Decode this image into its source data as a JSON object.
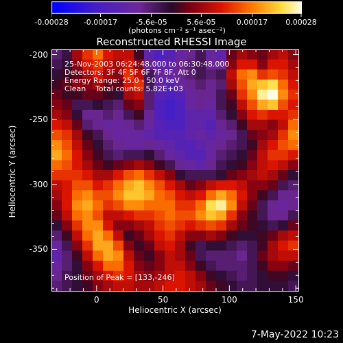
{
  "colorbar": {
    "tick_labels": [
      "-0.00028",
      "-0.00017",
      "-5.6e-05",
      "5.6e-05",
      "0.00017",
      "0.00028"
    ],
    "tick_values": [
      -0.00028,
      -0.00017,
      -5.6e-05,
      5.6e-05,
      0.00017,
      0.00028
    ],
    "range": [
      -0.00028,
      0.00028
    ],
    "units": "(photons cm⁻² s⁻¹ asec⁻²)"
  },
  "title": "Reconstructed RHESSI Image",
  "info": {
    "time": "25-Nov-2003 06:24:48.000 to 06:30:48.000",
    "detectors": "Detectors: 3F 4F 5F 6F 7F 8F, Att 0",
    "energy": "Energy Range: 25.0 - 50.0 keV",
    "clean": "Clean    Total counts: 5.82E+03",
    "peak": "Position of Peak = [133,-246]"
  },
  "axes": {
    "xlabel": "Heliocentric X (arcsec)",
    "ylabel": "Heliocentric Y (arcsec)",
    "xlim": [
      -34,
      152
    ],
    "ylim": [
      -382,
      -196
    ],
    "xticks": [
      "0",
      "50",
      "100",
      "150"
    ],
    "xtick_values": [
      0,
      50,
      100,
      150
    ],
    "yticks": [
      "-200",
      "-250",
      "-300",
      "-350"
    ],
    "ytick_values": [
      -200,
      -250,
      -300,
      -350
    ]
  },
  "timestamp": "7-May-2022 10:23",
  "chart_data": {
    "type": "heatmap",
    "title": "Reconstructed RHESSI Image",
    "xlabel": "Heliocentric X (arcsec)",
    "ylabel": "Heliocentric Y (arcsec)",
    "x_range": [
      -34,
      152
    ],
    "y_range": [
      -382,
      -196
    ],
    "value_range": [
      -0.00028,
      0.00028
    ],
    "peak_position": [
      133,
      -246
    ],
    "colormap": "blue-purple-red-yellow-white",
    "cols": 24,
    "rows": 24,
    "values": [
      [
        -6e-05,
        -3e-05,
        6e-05,
        0.00012,
        0.00016,
        0.0001,
        8e-05,
        8e-05,
        0.0,
        -0.00012,
        -0.00016,
        -0.00014,
        -0.0001,
        -8e-05,
        -4e-05,
        -0.0001,
        -0.00012,
        2e-05,
        6e-05,
        4e-05,
        2e-05,
        6e-05,
        8e-05,
        4e-05
      ],
      [
        -4e-05,
        -2e-05,
        4e-05,
        0.0001,
        0.00012,
        8e-05,
        6e-05,
        0.0001,
        4e-05,
        -8e-05,
        -0.00012,
        -0.00012,
        -8e-05,
        -6e-05,
        -4e-05,
        -8e-05,
        -8e-05,
        4e-05,
        0.0001,
        0.0001,
        4e-05,
        0.0001,
        0.0001,
        6e-05
      ],
      [
        -2e-05,
        0.0,
        2e-05,
        6e-05,
        0.0001,
        6e-05,
        4e-05,
        0.00012,
        8e-05,
        -4e-05,
        -0.0001,
        -0.0001,
        -8e-05,
        -6e-05,
        -4e-05,
        -6e-05,
        -4e-05,
        8e-05,
        0.00016,
        0.00018,
        0.00012,
        0.00014,
        0.00012,
        8e-05
      ],
      [
        0.0,
        2e-05,
        4e-05,
        4e-05,
        6e-05,
        2e-05,
        2e-05,
        0.0001,
        0.00012,
        -4e-05,
        -0.00012,
        -0.00014,
        -0.0001,
        -8e-05,
        -6e-05,
        -8e-05,
        -6e-05,
        6e-05,
        0.00014,
        0.0002,
        0.00022,
        0.00024,
        0.00016,
        0.0001
      ],
      [
        2e-05,
        0.0,
        0.0,
        2e-05,
        2e-05,
        0.0,
        -2e-05,
        6e-05,
        8e-05,
        -6e-05,
        -0.00014,
        -0.00016,
        -0.00014,
        -0.0001,
        -8e-05,
        -8e-05,
        -4e-05,
        2e-05,
        0.00012,
        0.00018,
        0.00026,
        0.00028,
        0.00018,
        0.00012
      ],
      [
        4e-05,
        2e-05,
        -4e-05,
        -4e-05,
        -2e-05,
        -4e-05,
        -6e-05,
        2e-05,
        4e-05,
        -6e-05,
        -0.00016,
        -0.00018,
        -0.00016,
        -0.0001,
        -8e-05,
        -0.0001,
        -4e-05,
        0.0,
        8e-05,
        0.00014,
        0.0002,
        0.00022,
        0.00014,
        0.0001
      ],
      [
        6e-05,
        4e-05,
        -2e-05,
        -8e-05,
        -8e-05,
        -6e-05,
        -8e-05,
        -4e-05,
        0.0,
        -8e-05,
        -0.00016,
        -0.00018,
        -0.00016,
        -0.00012,
        -0.00012,
        -0.00012,
        -6e-05,
        -2e-05,
        4e-05,
        0.0001,
        0.00012,
        0.0001,
        0.0001,
        0.00012
      ],
      [
        0.0001,
        8e-05,
        2e-05,
        -6e-05,
        -8e-05,
        -0.0001,
        -0.0001,
        -8e-05,
        -6e-05,
        -0.0001,
        -0.00014,
        -0.00016,
        -0.00016,
        -0.00012,
        -0.00012,
        -0.00014,
        -8e-05,
        -6e-05,
        0.0,
        6e-05,
        6e-05,
        4e-05,
        8e-05,
        0.00016
      ],
      [
        0.00014,
        0.00012,
        6e-05,
        0.0,
        -4e-05,
        -8e-05,
        -0.0001,
        -0.0001,
        -0.0001,
        -0.00012,
        -0.00014,
        -0.00014,
        -0.00014,
        -0.00012,
        -0.0001,
        -0.00012,
        -0.0001,
        -8e-05,
        -4e-05,
        2e-05,
        4e-05,
        6e-05,
        0.00012,
        0.00018
      ],
      [
        0.00018,
        0.00014,
        8e-05,
        2e-05,
        -2e-05,
        -6e-05,
        -8e-05,
        -0.0001,
        -0.0001,
        -8e-05,
        -0.0001,
        -0.00012,
        -0.00014,
        -0.00014,
        -0.00012,
        -0.0001,
        -8e-05,
        -6e-05,
        -4e-05,
        0.0,
        6e-05,
        0.0001,
        0.00014,
        0.00016
      ],
      [
        0.0002,
        0.00016,
        0.0001,
        4e-05,
        0.0,
        -4e-05,
        -6e-05,
        -4e-05,
        -4e-05,
        -2e-05,
        -6e-05,
        -0.0001,
        -0.00012,
        -0.00014,
        -0.00014,
        -0.0001,
        -6e-05,
        -4e-05,
        -2e-05,
        2e-05,
        8e-05,
        0.00012,
        0.00012,
        0.0001
      ],
      [
        0.00016,
        0.00014,
        0.0001,
        6e-05,
        2e-05,
        0.0,
        2e-05,
        4e-05,
        6e-05,
        4e-05,
        0.0,
        -4e-05,
        -8e-05,
        -0.0001,
        -0.00012,
        -8e-05,
        -4e-05,
        -2e-05,
        0.0,
        4e-05,
        8e-05,
        0.0001,
        8e-05,
        4e-05
      ],
      [
        0.00012,
        0.00012,
        0.00012,
        0.0001,
        6e-05,
        6e-05,
        0.0001,
        0.00014,
        0.00016,
        0.00012,
        8e-05,
        4e-05,
        -2e-05,
        -4e-05,
        -4e-05,
        -4e-05,
        -2e-05,
        2e-05,
        4e-05,
        6e-05,
        8e-05,
        6e-05,
        2e-05,
        -2e-05
      ],
      [
        8e-05,
        0.0001,
        0.00014,
        0.00014,
        0.0001,
        0.00012,
        0.00016,
        0.0002,
        0.00022,
        0.00018,
        0.00014,
        0.0001,
        6e-05,
        2e-05,
        4e-05,
        8e-05,
        0.0001,
        0.0001,
        8e-05,
        4e-05,
        4e-05,
        2e-05,
        -4e-05,
        -6e-05
      ],
      [
        6e-05,
        0.0001,
        0.00016,
        0.00018,
        0.00014,
        0.00014,
        0.00018,
        0.00022,
        0.00022,
        0.0002,
        0.00016,
        0.00014,
        0.0001,
        8e-05,
        0.0001,
        0.00016,
        0.0002,
        0.00016,
        0.0001,
        4e-05,
        0.0,
        -4e-05,
        -8e-05,
        -8e-05
      ],
      [
        4e-05,
        0.0001,
        0.00018,
        0.0002,
        0.00016,
        0.00012,
        0.00014,
        0.00018,
        0.00018,
        0.00016,
        0.00016,
        0.00016,
        0.00012,
        0.00012,
        0.00016,
        0.00024,
        0.00026,
        0.00018,
        8e-05,
        2e-05,
        -4e-05,
        -8e-05,
        -0.0001,
        -8e-05
      ],
      [
        2e-05,
        8e-05,
        0.00016,
        0.00018,
        0.00014,
        8e-05,
        8e-05,
        0.0001,
        0.00012,
        0.00012,
        0.00014,
        0.00016,
        0.00014,
        0.00014,
        0.00018,
        0.00022,
        0.0002,
        0.00012,
        4e-05,
        0.0,
        -4e-05,
        -8e-05,
        -8e-05,
        -4e-05
      ],
      [
        -2e-05,
        4e-05,
        0.00012,
        0.00018,
        0.00018,
        0.0001,
        4e-05,
        4e-05,
        6e-05,
        8e-05,
        0.00012,
        0.00014,
        0.00012,
        0.0001,
        0.00012,
        0.00014,
        0.00012,
        6e-05,
        2e-05,
        0.0,
        -2e-05,
        -4e-05,
        -2e-05,
        2e-05
      ],
      [
        -6e-05,
        0.0,
        8e-05,
        0.00016,
        0.0002,
        0.00016,
        8e-05,
        0.0,
        2e-05,
        6e-05,
        0.0001,
        0.00012,
        8e-05,
        4e-05,
        4e-05,
        6e-05,
        4e-05,
        0.0,
        -2e-05,
        -2e-05,
        0.0,
        2e-05,
        6e-05,
        8e-05
      ],
      [
        -0.0001,
        -4e-05,
        4e-05,
        0.00012,
        0.0002,
        0.0002,
        0.00014,
        4e-05,
        0.0,
        2e-05,
        8e-05,
        0.0001,
        6e-05,
        0.0,
        -4e-05,
        -2e-05,
        -2e-05,
        -4e-05,
        -6e-05,
        -4e-05,
        0.0,
        6e-05,
        0.0001,
        0.00012
      ],
      [
        -0.00012,
        -6e-05,
        0.0,
        8e-05,
        0.00016,
        0.0002,
        0.00018,
        8e-05,
        2e-05,
        0.0,
        4e-05,
        8e-05,
        6e-05,
        2e-05,
        -4e-05,
        -6e-05,
        -6e-05,
        -6e-05,
        -8e-05,
        -4e-05,
        2e-05,
        6e-05,
        8e-05,
        8e-05
      ],
      [
        -0.0001,
        -6e-05,
        -2e-05,
        4e-05,
        0.0001,
        0.00016,
        0.00016,
        0.0001,
        4e-05,
        2e-05,
        4e-05,
        8e-05,
        8e-05,
        4e-05,
        0.0,
        -4e-05,
        -6e-05,
        -6e-05,
        -6e-05,
        -4e-05,
        0.0,
        4e-05,
        4e-05,
        2e-05
      ],
      [
        -8e-05,
        -4e-05,
        -2e-05,
        2e-05,
        6e-05,
        0.0001,
        0.00012,
        0.0001,
        6e-05,
        4e-05,
        6e-05,
        8e-05,
        0.0001,
        8e-05,
        4e-05,
        0.0,
        -2e-05,
        -4e-05,
        -6e-05,
        -4e-05,
        -2e-05,
        0.0,
        0.0,
        -2e-05
      ],
      [
        -6e-05,
        -4e-05,
        -2e-05,
        0.0,
        4e-05,
        6e-05,
        8e-05,
        8e-05,
        6e-05,
        6e-05,
        8e-05,
        0.0001,
        0.0001,
        8e-05,
        6e-05,
        2e-05,
        0.0,
        -2e-05,
        -4e-05,
        -4e-05,
        -2e-05,
        -2e-05,
        -2e-05,
        -4e-05
      ]
    ]
  }
}
